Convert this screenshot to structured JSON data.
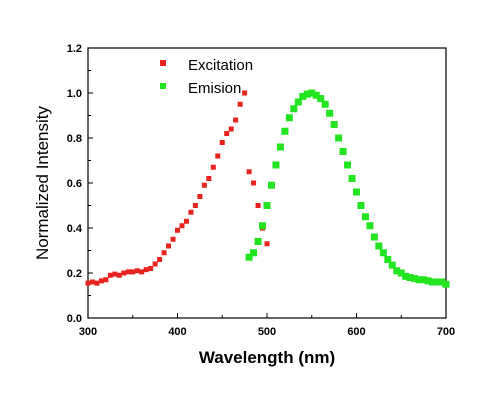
{
  "chart_data": {
    "type": "scatter",
    "xlabel": "Wavelength (nm)",
    "ylabel": "Normalized Intensity",
    "xlim": [
      300,
      700
    ],
    "ylim": [
      0.0,
      1.2
    ],
    "x_ticks": [
      "300",
      "400",
      "500",
      "600",
      "700"
    ],
    "y_ticks": [
      "0.0",
      "0.2",
      "0.4",
      "0.6",
      "0.8",
      "1.0",
      "1.2"
    ],
    "grid": false,
    "legend_position": "top-left",
    "series": [
      {
        "name": "Excitation",
        "color": "#e8231e",
        "marker": "square",
        "x": [
          300,
          305,
          310,
          315,
          320,
          325,
          330,
          335,
          340,
          345,
          350,
          355,
          360,
          365,
          370,
          375,
          380,
          385,
          390,
          395,
          400,
          405,
          410,
          415,
          420,
          425,
          430,
          435,
          440,
          445,
          450,
          455,
          460,
          465,
          470,
          475,
          480,
          485,
          490,
          495,
          500
        ],
        "y": [
          0.155,
          0.16,
          0.155,
          0.165,
          0.17,
          0.19,
          0.195,
          0.19,
          0.2,
          0.205,
          0.205,
          0.21,
          0.205,
          0.215,
          0.22,
          0.24,
          0.26,
          0.29,
          0.32,
          0.35,
          0.39,
          0.41,
          0.43,
          0.47,
          0.5,
          0.54,
          0.59,
          0.62,
          0.67,
          0.72,
          0.78,
          0.82,
          0.84,
          0.88,
          0.95,
          1.0,
          0.65,
          0.6,
          0.5,
          0.4,
          0.33
        ]
      },
      {
        "name": "Emision",
        "color": "#22e51f",
        "marker": "square",
        "x": [
          480,
          485,
          490,
          495,
          500,
          505,
          510,
          515,
          520,
          525,
          530,
          535,
          540,
          545,
          550,
          555,
          560,
          565,
          570,
          575,
          580,
          585,
          590,
          595,
          600,
          605,
          610,
          615,
          620,
          625,
          630,
          635,
          640,
          645,
          650,
          655,
          660,
          665,
          670,
          675,
          680,
          685,
          690,
          695,
          700
        ],
        "y": [
          0.27,
          0.29,
          0.34,
          0.41,
          0.5,
          0.59,
          0.68,
          0.76,
          0.83,
          0.89,
          0.93,
          0.96,
          0.985,
          0.995,
          1.0,
          0.99,
          0.975,
          0.95,
          0.91,
          0.86,
          0.8,
          0.74,
          0.68,
          0.62,
          0.56,
          0.5,
          0.45,
          0.41,
          0.36,
          0.32,
          0.29,
          0.26,
          0.235,
          0.21,
          0.2,
          0.185,
          0.18,
          0.175,
          0.17,
          0.17,
          0.165,
          0.16,
          0.16,
          0.16,
          0.15
        ]
      }
    ]
  }
}
